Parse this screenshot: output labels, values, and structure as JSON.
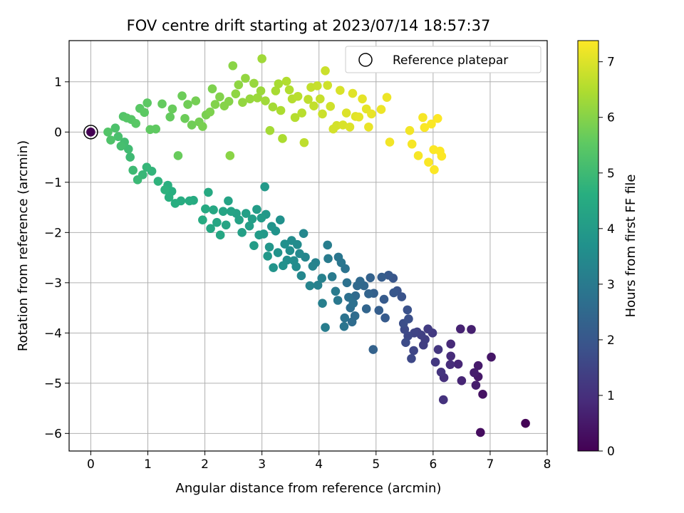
{
  "chart_data": {
    "type": "scatter",
    "title": "FOV centre drift starting at 2023/07/14 18:57:37",
    "xlabel": "Angular distance from reference (arcmin)",
    "ylabel": "Rotation from reference (arcmin)",
    "xlim": [
      -0.38,
      8.0
    ],
    "ylim": [
      -6.35,
      1.82
    ],
    "xticks": [
      0,
      1,
      2,
      3,
      4,
      5,
      6,
      7,
      8
    ],
    "yticks": [
      1,
      0,
      -1,
      -2,
      -3,
      -4,
      -5,
      -6
    ],
    "grid": true,
    "legend": {
      "label": "Reference platepar",
      "placement": "top-right"
    },
    "colorbar": {
      "label": "Hours from first FF file",
      "range": [
        0,
        7.38
      ],
      "ticks": [
        0,
        1,
        2,
        3,
        4,
        5,
        6,
        7
      ],
      "colormap": "viridis"
    },
    "reference_point": {
      "x": 0,
      "y": 0
    },
    "series": [
      {
        "points": [
          [
            7.62,
            -5.8,
            0.05
          ],
          [
            6.83,
            -5.98,
            0.25
          ],
          [
            6.87,
            -5.22,
            0.35
          ],
          [
            7.02,
            -4.48,
            0.45
          ],
          [
            6.79,
            -4.65,
            0.55
          ],
          [
            6.79,
            -4.87,
            0.5
          ],
          [
            6.75,
            -5.04,
            0.6
          ],
          [
            6.72,
            -4.79,
            0.6
          ],
          [
            6.67,
            -3.93,
            0.65
          ],
          [
            6.48,
            -3.92,
            0.7
          ],
          [
            6.5,
            -4.95,
            0.75
          ],
          [
            6.44,
            -4.62,
            0.8
          ],
          [
            6.31,
            -4.22,
            0.85
          ],
          [
            6.31,
            -4.46,
            0.9
          ],
          [
            6.3,
            -4.63,
            0.95
          ],
          [
            6.19,
            -4.89,
            1.0
          ],
          [
            6.18,
            -5.33,
            1.05
          ],
          [
            6.14,
            -4.78,
            1.1
          ],
          [
            6.09,
            -4.33,
            1.15
          ],
          [
            6.04,
            -4.58,
            1.2
          ],
          [
            5.99,
            -4.0,
            1.25
          ],
          [
            5.91,
            -3.92,
            1.3
          ],
          [
            5.86,
            -4.13,
            1.35
          ],
          [
            5.83,
            -4.24,
            1.35
          ],
          [
            5.79,
            -4.04,
            1.4
          ],
          [
            5.72,
            -3.98,
            1.45
          ],
          [
            5.67,
            -4.0,
            1.5
          ],
          [
            5.66,
            -4.35,
            1.55
          ],
          [
            5.62,
            -4.51,
            1.6
          ],
          [
            5.56,
            -4.06,
            1.6
          ],
          [
            5.5,
            -3.93,
            1.65
          ],
          [
            5.52,
            -4.19,
            1.7
          ],
          [
            5.48,
            -3.81,
            1.75
          ],
          [
            5.57,
            -3.72,
            1.8
          ],
          [
            5.55,
            -3.54,
            1.85
          ],
          [
            5.45,
            -3.28,
            1.9
          ],
          [
            5.37,
            -3.16,
            1.9
          ],
          [
            5.3,
            -2.91,
            1.95
          ],
          [
            5.31,
            -3.2,
            2.0
          ],
          [
            5.22,
            -2.85,
            2.05
          ],
          [
            5.16,
            -3.7,
            2.1
          ],
          [
            5.14,
            -3.33,
            2.1
          ],
          [
            5.1,
            -2.89,
            2.15
          ],
          [
            5.05,
            -3.55,
            2.2
          ],
          [
            4.96,
            -3.21,
            2.25
          ],
          [
            4.9,
            -2.9,
            2.3
          ],
          [
            4.95,
            -4.33,
            2.3
          ],
          [
            4.87,
            -3.22,
            2.35
          ],
          [
            4.83,
            -3.52,
            2.4
          ],
          [
            4.79,
            -3.06,
            2.45
          ],
          [
            4.72,
            -2.97,
            2.5
          ],
          [
            4.67,
            -3.06,
            2.5
          ],
          [
            4.64,
            -3.26,
            2.55
          ],
          [
            4.63,
            -3.66,
            2.6
          ],
          [
            4.58,
            -3.78,
            2.6
          ],
          [
            4.55,
            -3.5,
            2.65
          ],
          [
            4.6,
            -3.41,
            2.7
          ],
          [
            4.52,
            -3.29,
            2.7
          ],
          [
            4.49,
            -3.0,
            2.75
          ],
          [
            4.46,
            -2.72,
            2.8
          ],
          [
            4.45,
            -3.7,
            2.8
          ],
          [
            4.44,
            -3.87,
            2.85
          ],
          [
            4.39,
            -2.6,
            2.9
          ],
          [
            4.34,
            -2.49,
            2.9
          ],
          [
            4.33,
            -3.35,
            2.95
          ],
          [
            4.29,
            -3.17,
            3.0
          ],
          [
            4.23,
            -2.88,
            3.0
          ],
          [
            4.16,
            -2.52,
            3.05
          ],
          [
            4.15,
            -2.25,
            3.1
          ],
          [
            4.11,
            -3.89,
            3.1
          ],
          [
            4.06,
            -3.41,
            3.15
          ],
          [
            4.05,
            -2.91,
            3.2
          ],
          [
            3.98,
            -3.05,
            3.2
          ],
          [
            3.94,
            -2.6,
            3.25
          ],
          [
            3.89,
            -2.67,
            3.3
          ],
          [
            3.84,
            -3.06,
            3.3
          ],
          [
            3.76,
            -2.49,
            3.35
          ],
          [
            3.73,
            -2.02,
            3.4
          ],
          [
            3.69,
            -2.86,
            3.4
          ],
          [
            3.66,
            -2.42,
            3.45
          ],
          [
            3.62,
            -2.24,
            3.5
          ],
          [
            3.6,
            -2.68,
            3.5
          ],
          [
            3.56,
            -2.56,
            3.55
          ],
          [
            3.52,
            -2.16,
            3.55
          ],
          [
            3.49,
            -2.36,
            3.6
          ],
          [
            3.44,
            -2.55,
            3.6
          ],
          [
            3.4,
            -2.23,
            3.65
          ],
          [
            3.37,
            -2.66,
            3.7
          ],
          [
            3.32,
            -1.75,
            3.7
          ],
          [
            3.28,
            -2.4,
            3.75
          ],
          [
            3.24,
            -1.97,
            3.75
          ],
          [
            3.2,
            -2.7,
            3.8
          ],
          [
            3.17,
            -1.88,
            3.8
          ],
          [
            3.13,
            -2.29,
            3.85
          ],
          [
            3.1,
            -2.47,
            3.9
          ],
          [
            3.07,
            -1.64,
            3.9
          ],
          [
            3.05,
            -1.09,
            3.95
          ],
          [
            3.03,
            -2.03,
            3.95
          ],
          [
            2.99,
            -1.71,
            4.0
          ],
          [
            2.95,
            -2.05,
            4.0
          ],
          [
            2.91,
            -1.54,
            4.05
          ],
          [
            2.86,
            -2.26,
            4.05
          ],
          [
            2.83,
            -1.73,
            4.1
          ],
          [
            2.78,
            -1.87,
            4.1
          ],
          [
            2.72,
            -1.62,
            4.15
          ],
          [
            2.65,
            -2.0,
            4.15
          ],
          [
            2.6,
            -1.75,
            4.2
          ],
          [
            2.55,
            -1.62,
            4.2
          ],
          [
            2.46,
            -1.58,
            4.25
          ],
          [
            2.41,
            -1.37,
            4.25
          ],
          [
            2.37,
            -1.85,
            4.3
          ],
          [
            2.32,
            -1.58,
            4.3
          ],
          [
            2.27,
            -2.05,
            4.35
          ],
          [
            2.21,
            -1.8,
            4.35
          ],
          [
            2.15,
            -1.55,
            4.4
          ],
          [
            2.1,
            -1.92,
            4.4
          ],
          [
            2.06,
            -1.2,
            4.45
          ],
          [
            2.01,
            -1.53,
            4.45
          ],
          [
            1.96,
            -1.75,
            4.5
          ],
          [
            1.8,
            -1.36,
            4.5
          ],
          [
            1.73,
            -1.37,
            4.55
          ],
          [
            1.58,
            -1.37,
            4.55
          ],
          [
            1.48,
            -1.42,
            4.6
          ],
          [
            1.42,
            -1.18,
            4.6
          ],
          [
            1.37,
            -1.3,
            4.65
          ],
          [
            1.35,
            -1.06,
            4.65
          ],
          [
            1.3,
            -1.15,
            4.7
          ],
          [
            1.18,
            -0.98,
            4.75
          ],
          [
            1.07,
            -0.78,
            4.8
          ],
          [
            0.98,
            -0.7,
            4.85
          ],
          [
            0.91,
            -0.85,
            4.9
          ],
          [
            0.82,
            -0.95,
            4.95
          ],
          [
            0.74,
            -0.76,
            5.0
          ],
          [
            0.69,
            -0.5,
            5.0
          ],
          [
            0.66,
            -0.34,
            5.05
          ],
          [
            0.59,
            -0.2,
            5.1
          ],
          [
            0.53,
            -0.28,
            5.15
          ],
          [
            0.48,
            -0.09,
            5.2
          ],
          [
            0.43,
            0.08,
            5.25
          ],
          [
            0.35,
            -0.16,
            5.3
          ],
          [
            0.3,
            0.0,
            5.35
          ],
          [
            0.57,
            0.31,
            5.35
          ],
          [
            0.63,
            0.28,
            5.4
          ],
          [
            0.71,
            0.25,
            5.4
          ],
          [
            0.79,
            0.17,
            5.45
          ],
          [
            0.86,
            0.47,
            5.45
          ],
          [
            0.94,
            0.39,
            5.5
          ],
          [
            0.99,
            0.58,
            5.5
          ],
          [
            1.04,
            0.05,
            5.55
          ],
          [
            1.14,
            0.06,
            5.55
          ],
          [
            1.25,
            0.56,
            5.6
          ],
          [
            1.39,
            0.3,
            5.6
          ],
          [
            1.43,
            0.46,
            5.65
          ],
          [
            1.53,
            -0.47,
            5.65
          ],
          [
            1.6,
            0.72,
            5.7
          ],
          [
            1.65,
            0.27,
            5.7
          ],
          [
            1.7,
            0.55,
            5.75
          ],
          [
            1.77,
            0.14,
            5.75
          ],
          [
            1.84,
            0.62,
            5.8
          ],
          [
            1.9,
            0.2,
            5.8
          ],
          [
            1.96,
            0.11,
            5.85
          ],
          [
            2.02,
            0.34,
            5.85
          ],
          [
            2.09,
            0.4,
            5.9
          ],
          [
            2.13,
            0.86,
            5.9
          ],
          [
            2.18,
            0.55,
            5.95
          ],
          [
            2.26,
            0.7,
            5.95
          ],
          [
            2.34,
            0.52,
            6.0
          ],
          [
            2.42,
            0.61,
            6.0
          ],
          [
            2.44,
            -0.47,
            6.05
          ],
          [
            2.49,
            1.32,
            6.05
          ],
          [
            2.54,
            0.76,
            6.1
          ],
          [
            2.59,
            0.94,
            6.1
          ],
          [
            2.66,
            0.59,
            6.15
          ],
          [
            2.71,
            1.07,
            6.15
          ],
          [
            2.79,
            0.66,
            6.2
          ],
          [
            2.86,
            0.97,
            6.2
          ],
          [
            2.92,
            0.68,
            6.25
          ],
          [
            2.98,
            0.82,
            6.25
          ],
          [
            3.0,
            1.46,
            6.3
          ],
          [
            3.06,
            0.62,
            6.3
          ],
          [
            3.14,
            0.03,
            6.35
          ],
          [
            3.19,
            0.5,
            6.35
          ],
          [
            3.24,
            0.82,
            6.4
          ],
          [
            3.29,
            0.96,
            6.4
          ],
          [
            3.33,
            0.43,
            6.45
          ],
          [
            3.36,
            -0.13,
            6.45
          ],
          [
            3.43,
            1.01,
            6.5
          ],
          [
            3.48,
            0.84,
            6.5
          ],
          [
            3.53,
            0.66,
            6.55
          ],
          [
            3.58,
            0.29,
            6.55
          ],
          [
            3.63,
            0.71,
            6.6
          ],
          [
            3.7,
            0.38,
            6.6
          ],
          [
            3.74,
            -0.21,
            6.65
          ],
          [
            3.81,
            0.65,
            6.65
          ],
          [
            3.86,
            0.89,
            6.7
          ],
          [
            3.91,
            0.52,
            6.7
          ],
          [
            3.97,
            0.92,
            6.75
          ],
          [
            4.02,
            0.66,
            6.75
          ],
          [
            4.06,
            0.36,
            6.8
          ],
          [
            4.11,
            1.22,
            6.8
          ],
          [
            4.15,
            0.93,
            6.85
          ],
          [
            4.2,
            0.51,
            6.85
          ],
          [
            4.25,
            0.06,
            6.9
          ],
          [
            4.31,
            0.13,
            6.9
          ],
          [
            4.37,
            0.83,
            6.95
          ],
          [
            4.42,
            0.14,
            6.95
          ],
          [
            4.48,
            0.38,
            7.0
          ],
          [
            4.54,
            0.1,
            7.0
          ],
          [
            4.59,
            0.77,
            7.05
          ],
          [
            4.64,
            0.31,
            7.05
          ],
          [
            4.7,
            0.3,
            7.1
          ],
          [
            4.76,
            0.66,
            7.1
          ],
          [
            4.83,
            0.46,
            7.1
          ],
          [
            4.87,
            0.1,
            7.15
          ],
          [
            4.92,
            0.36,
            7.15
          ],
          [
            5.09,
            0.45,
            7.2
          ],
          [
            5.19,
            0.69,
            7.2
          ],
          [
            5.24,
            -0.2,
            7.25
          ],
          [
            5.59,
            0.03,
            7.25
          ],
          [
            5.63,
            -0.24,
            7.3
          ],
          [
            5.74,
            -0.47,
            7.3
          ],
          [
            5.82,
            0.29,
            7.3
          ],
          [
            5.85,
            0.09,
            7.35
          ],
          [
            5.92,
            -0.6,
            7.35
          ],
          [
            5.97,
            0.16,
            7.35
          ],
          [
            6.01,
            -0.35,
            7.36
          ],
          [
            6.02,
            -0.75,
            7.36
          ],
          [
            6.08,
            0.27,
            7.37
          ],
          [
            6.12,
            -0.38,
            7.37
          ],
          [
            6.15,
            -0.48,
            7.37
          ]
        ]
      }
    ]
  }
}
